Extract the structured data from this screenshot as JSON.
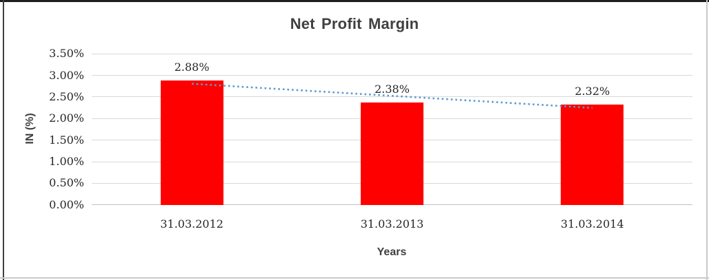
{
  "chart_data": {
    "type": "bar",
    "title": "Net Profit Margin",
    "xlabel": "Years",
    "ylabel": "IN (%)",
    "categories": [
      "31.03.2012",
      "31.03.2013",
      "31.03.2014"
    ],
    "values": [
      2.88,
      2.38,
      2.32
    ],
    "data_labels": [
      "2.88%",
      "2.38%",
      "2.32%"
    ],
    "ylim": [
      0,
      3.5
    ],
    "ytick_step": 0.5,
    "ytick_labels": [
      "0.00%",
      "0.50%",
      "1.00%",
      "1.50%",
      "2.00%",
      "2.50%",
      "3.00%",
      "3.50%"
    ],
    "grid": true,
    "legend": "none",
    "bar_color": "#FF0000",
    "trendline": {
      "type": "linear",
      "style": "dotted",
      "color": "#5B9BD5"
    },
    "gridline_color": "#D9D9D9",
    "axis_line_color": "#BFBFBF",
    "title_color": "#404040",
    "axis_title_color": "#404040",
    "tick_color": "#262626"
  }
}
